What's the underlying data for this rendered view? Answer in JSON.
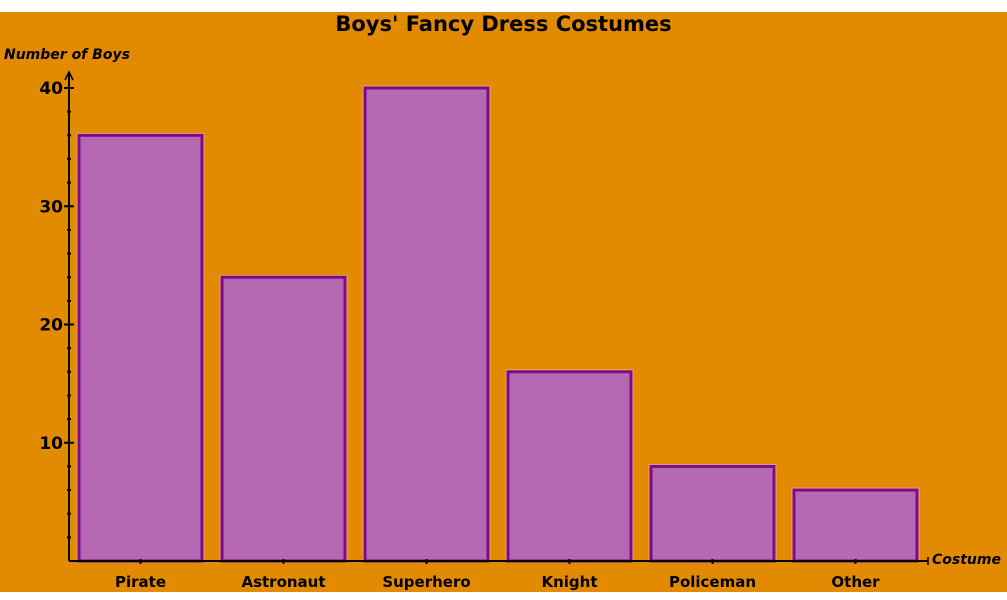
{
  "chart_data": {
    "type": "bar",
    "title": "Boys' Fancy Dress Costumes",
    "xlabel": "Costume",
    "ylabel": "Number of Boys",
    "categories": [
      "Pirate",
      "Astronaut",
      "Superhero",
      "Knight",
      "Policeman",
      "Other"
    ],
    "values": [
      36,
      24,
      40,
      16,
      8,
      6
    ],
    "ylim": [
      0,
      40
    ],
    "yticks": [
      10,
      20,
      30,
      40
    ],
    "minor_tick_step": 2,
    "grid": false,
    "legend": null,
    "colors": {
      "background": "#e38a03",
      "bar_fill": "#b569b3",
      "bar_border": "#7d0a8a",
      "axis": "#000000"
    }
  }
}
